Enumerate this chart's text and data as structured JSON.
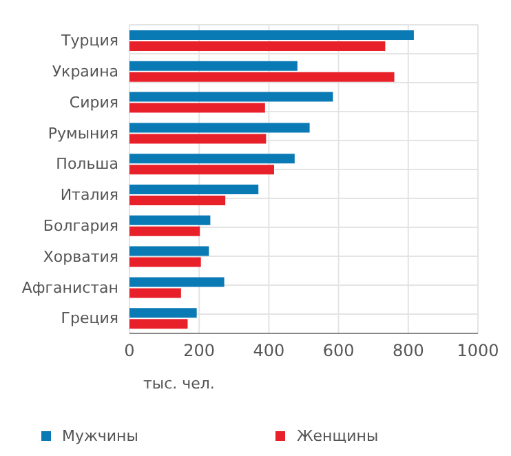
{
  "chart_data": {
    "type": "bar",
    "orientation": "horizontal",
    "xlabel": "тыс. чел.",
    "categories": [
      "Турция",
      "Украина",
      "Сирия",
      "Румыния",
      "Польша",
      "Италия",
      "Болгария",
      "Хорватия",
      "Афганистан",
      "Греция"
    ],
    "series": [
      {
        "name": "Мужчины",
        "color": "#0a7ab5",
        "values": [
          816,
          482,
          584,
          517,
          474,
          370,
          232,
          228,
          272,
          193
        ]
      },
      {
        "name": "Женщины",
        "color": "#e8202a",
        "values": [
          734,
          760,
          389,
          392,
          415,
          275,
          202,
          205,
          148,
          167
        ]
      }
    ],
    "xlim": [
      0,
      1000
    ],
    "xticks": [
      0,
      200,
      400,
      600,
      800,
      1000
    ],
    "grid": true,
    "legend": "bottom"
  }
}
